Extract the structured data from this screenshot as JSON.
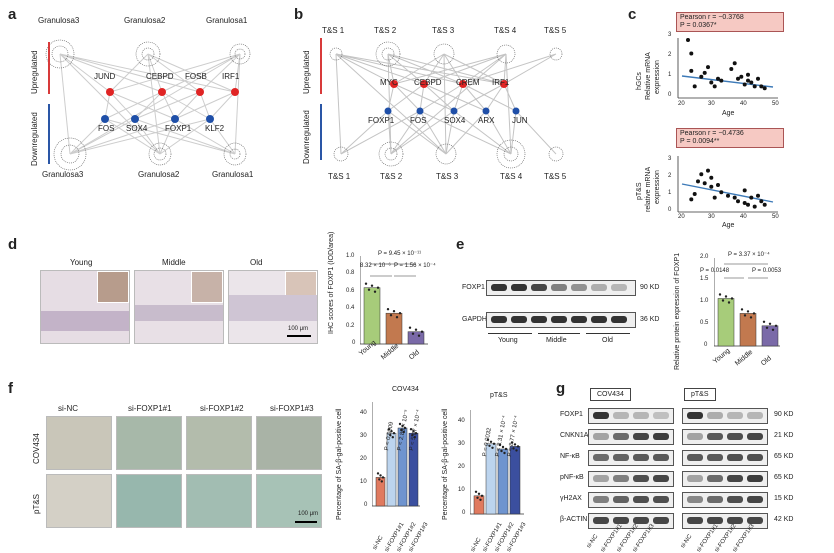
{
  "panels": {
    "a": {
      "letter": "a",
      "top_labels": [
        "Granulosa3",
        "Granulosa2",
        "Granulosa1"
      ],
      "bottom_labels": [
        "Granulosa3",
        "Granulosa2",
        "Granulosa1"
      ],
      "up_label": "Upregulated",
      "down_label": "Downregulated",
      "up_genes": [
        "JUND",
        "CEBPD",
        "FOSB",
        "IRF1"
      ],
      "down_genes": [
        "FOS",
        "SOX4",
        "FOXP1",
        "KLF2"
      ]
    },
    "b": {
      "letter": "b",
      "top_labels": [
        "T&S 1",
        "T&S 2",
        "T&S 3",
        "T&S 4",
        "T&S 5"
      ],
      "bottom_labels": [
        "T&S 1",
        "T&S 2",
        "T&S 3",
        "T&S 4",
        "T&S 5"
      ],
      "up_label": "Upregulated",
      "down_label": "Downregulated",
      "up_genes": [
        "MYC",
        "CEBPD",
        "CREM",
        "IRF1"
      ],
      "down_genes": [
        "FOXP1",
        "FOS",
        "SOX4",
        "ARX",
        "JUN"
      ]
    },
    "c": {
      "letter": "c",
      "top": {
        "pearson": "Pearson r = −0.3768",
        "p": "P = 0.0367*",
        "ylabel1": "hGCs",
        "ylabel2": "Relative mRNA",
        "ylabel3": "expression",
        "xlabel": "Age"
      },
      "bottom": {
        "pearson": "Pearson r = −0.4736",
        "p": "P = 0.0094**",
        "ylabel1": "pT&S",
        "ylabel2": "relative mRNA",
        "ylabel3": "expression",
        "xlabel": "Age"
      },
      "xticks": [
        "20",
        "30",
        "40",
        "50"
      ],
      "yticks_top": [
        "0",
        "1",
        "2",
        "3"
      ],
      "yticks_bottom": [
        "0",
        "1",
        "2",
        "3"
      ]
    },
    "d": {
      "letter": "d",
      "groups": [
        "Young",
        "Middle",
        "Old"
      ],
      "ylabel": "IHC scores of FOXP1 (IOD/area)",
      "yticks": [
        "0",
        "0.2",
        "0.4",
        "0.6",
        "0.8",
        "1.0"
      ],
      "p_top": "P = 9.45 × 10⁻¹¹",
      "p_left": "8.32 × 10⁻⁶",
      "p_right": "P = 1.56 × 10⁻⁴",
      "scale": "100 μm"
    },
    "e": {
      "letter": "e",
      "rows": [
        "FOXP1",
        "GAPDH"
      ],
      "sizes": [
        "90 KD",
        "36 KD"
      ],
      "groups": [
        "Young",
        "Middle",
        "Old"
      ],
      "ylabel": "Relative protein expression of FOXP1",
      "yticks": [
        "0",
        "0.5",
        "1.0",
        "1.5",
        "2.0"
      ],
      "p_top": "P = 3.37 × 10⁻⁴",
      "p_left": "P = 0.0148",
      "p_right": "P = 0.0053"
    },
    "f": {
      "letter": "f",
      "columns": [
        "si-NC",
        "si-FOXP1#1",
        "si-FOXP1#2",
        "si-FOXP1#3"
      ],
      "rows": [
        "COV434",
        "pT&S"
      ],
      "scale": "100 μm",
      "chart1_title": "COV434",
      "chart2_title": "pT&S",
      "ylabel": "Percentage of SA-β-gal-positive cell",
      "yticks1": [
        "0",
        "10",
        "20",
        "30",
        "40"
      ],
      "yticks2": [
        "0",
        "10",
        "20",
        "30",
        "40"
      ],
      "pvals1": [
        "P = 0.0009",
        "P = 2.89 × 10⁻⁵",
        "P = 5.07 × 10⁻⁴"
      ],
      "pvals2": [
        "P = 0.0032",
        "P = 8.31 × 10⁻⁴",
        "P = 8.77 × 10⁻⁴"
      ],
      "xcats": [
        "si-NC",
        "si-FOXP1#1",
        "si-FOXP1#2",
        "si-FOXP1#3"
      ]
    },
    "g": {
      "letter": "g",
      "cell1": "COV434",
      "cell2": "pT&S",
      "rows": [
        "FOXP1",
        "CNKN1A",
        "NF-κB",
        "pNF-κB",
        "γH2AX",
        "β-ACTIN"
      ],
      "sizes": [
        "90 KD",
        "21 KD",
        "65 KD",
        "65 KD",
        "15 KD",
        "42 KD"
      ],
      "lanes": [
        "si-NC",
        "si-FOXP1#1",
        "si-FOXP1#2",
        "si-FOXP1#3"
      ]
    }
  },
  "chart_data": [
    {
      "type": "scatter",
      "panel": "c-top",
      "xlabel": "Age",
      "ylim": [
        0,
        3
      ],
      "xlim": [
        20,
        50
      ],
      "points": [
        [
          23,
          3.0
        ],
        [
          24,
          2.3
        ],
        [
          24,
          1.4
        ],
        [
          25,
          0.6
        ],
        [
          27,
          1.1
        ],
        [
          28,
          1.3
        ],
        [
          29,
          1.6
        ],
        [
          30,
          0.8
        ],
        [
          31,
          0.6
        ],
        [
          32,
          1.0
        ],
        [
          33,
          0.9
        ],
        [
          36,
          1.5
        ],
        [
          37,
          1.8
        ],
        [
          38,
          1.0
        ],
        [
          39,
          1.1
        ],
        [
          40,
          0.7
        ],
        [
          41,
          1.2
        ],
        [
          41,
          0.9
        ],
        [
          42,
          0.8
        ],
        [
          43,
          0.6
        ],
        [
          44,
          1.0
        ],
        [
          45,
          0.6
        ],
        [
          46,
          0.5
        ]
      ]
    },
    {
      "type": "scatter",
      "panel": "c-bottom",
      "xlabel": "Age",
      "ylim": [
        0,
        3
      ],
      "xlim": [
        20,
        50
      ],
      "points": [
        [
          24,
          0.7
        ],
        [
          25,
          1.0
        ],
        [
          26,
          1.7
        ],
        [
          27,
          2.1
        ],
        [
          28,
          1.6
        ],
        [
          29,
          2.3
        ],
        [
          30,
          1.9
        ],
        [
          30,
          1.4
        ],
        [
          31,
          0.8
        ],
        [
          32,
          1.5
        ],
        [
          33,
          1.1
        ],
        [
          35,
          0.9
        ],
        [
          37,
          0.8
        ],
        [
          38,
          0.6
        ],
        [
          40,
          1.2
        ],
        [
          40,
          0.5
        ],
        [
          41,
          0.4
        ],
        [
          42,
          0.8
        ],
        [
          43,
          0.3
        ],
        [
          44,
          0.9
        ],
        [
          45,
          0.6
        ],
        [
          46,
          0.4
        ]
      ]
    },
    {
      "type": "bar",
      "panel": "d",
      "categories": [
        "Young",
        "Middle",
        "Old"
      ],
      "values": [
        0.64,
        0.35,
        0.14
      ],
      "colors": [
        "#a7cc7a",
        "#c2794f",
        "#7a6aa8"
      ],
      "ylim": [
        0,
        1.0
      ]
    },
    {
      "type": "bar",
      "panel": "e",
      "categories": [
        "Young",
        "Middle",
        "Old"
      ],
      "values": [
        1.08,
        0.74,
        0.46
      ],
      "colors": [
        "#a7cc7a",
        "#c2794f",
        "#7a6aa8"
      ],
      "ylim": [
        0,
        2.0
      ]
    },
    {
      "type": "bar",
      "panel": "f-COV434",
      "categories": [
        "si-NC",
        "si-FOXP1#1",
        "si-FOXP1#2",
        "si-FOXP1#3"
      ],
      "values": [
        11,
        28,
        30,
        28
      ],
      "colors": [
        "#e07a5f",
        "#bcd4ee",
        "#6f94cf",
        "#3b4f9f"
      ],
      "ylim": [
        0,
        40
      ]
    },
    {
      "type": "bar",
      "panel": "f-pT&S",
      "categories": [
        "si-NC",
        "si-FOXP1#1",
        "si-FOXP1#2",
        "si-FOXP1#3"
      ],
      "values": [
        7,
        27,
        25,
        26
      ],
      "colors": [
        "#e07a5f",
        "#bcd4ee",
        "#6f94cf",
        "#3b4f9f"
      ],
      "ylim": [
        0,
        40
      ]
    }
  ]
}
